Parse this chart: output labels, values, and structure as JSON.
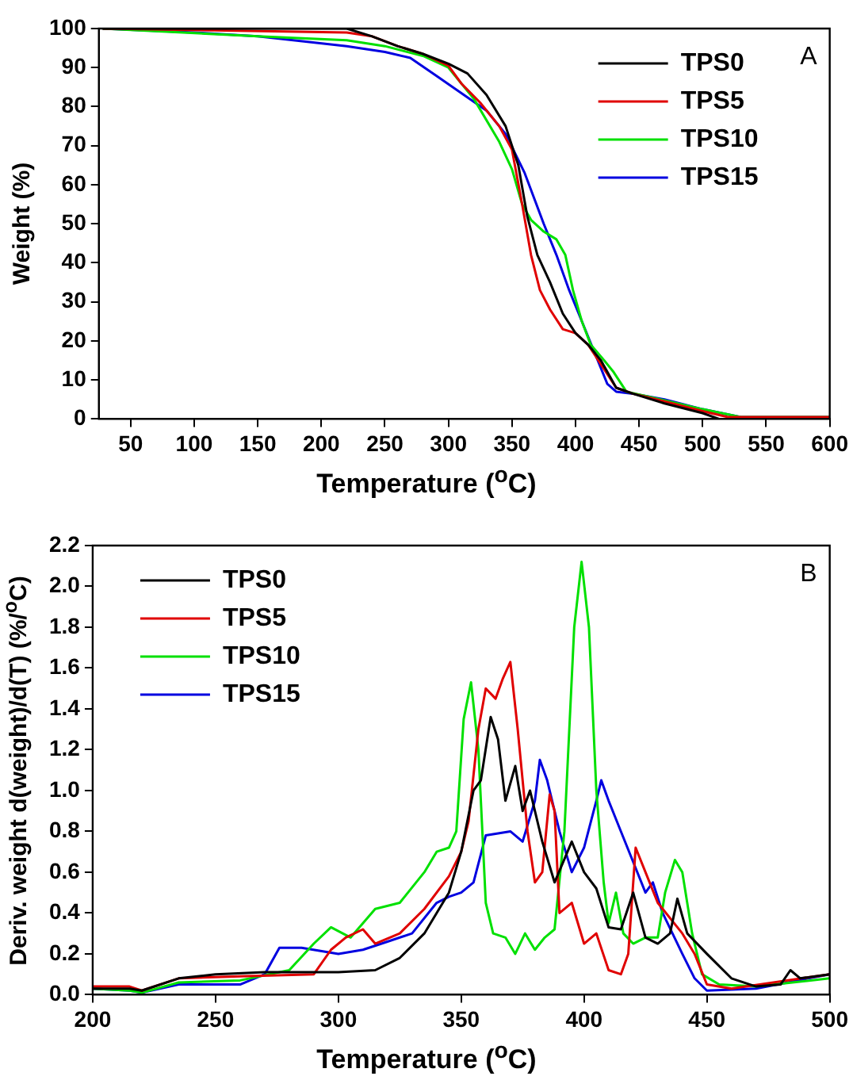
{
  "chart_data": [
    {
      "type": "line",
      "xlabel": "Temperature ($^{o}$C)",
      "ylabel": "Weight (%)",
      "annotations": [
        "A"
      ],
      "legend": "top right",
      "grid": false,
      "line_style": "solid",
      "marker": "none",
      "xlim": [
        25,
        600
      ],
      "xticks": [
        50,
        100,
        150,
        200,
        250,
        300,
        350,
        400,
        450,
        500,
        550,
        600
      ],
      "ylim": [
        0,
        100
      ],
      "yticks": [
        0,
        10,
        20,
        30,
        40,
        50,
        60,
        70,
        80,
        90,
        100
      ],
      "series": [
        {
          "name": "TPS0",
          "color": "#000000",
          "x": [
            28,
            220,
            240,
            260,
            280,
            300,
            315,
            330,
            345,
            355,
            362,
            370,
            380,
            390,
            400,
            410,
            420,
            432,
            445,
            470,
            500,
            513,
            600
          ],
          "values": [
            100,
            100,
            98,
            95.5,
            93.5,
            91,
            88.5,
            83,
            75,
            65,
            52,
            42,
            35,
            27,
            22,
            19,
            15,
            8,
            6.5,
            4,
            1.5,
            0,
            0
          ]
        },
        {
          "name": "TPS5",
          "color": "#e00000",
          "x": [
            28,
            220,
            240,
            260,
            280,
            300,
            310,
            325,
            340,
            350,
            358,
            365,
            372,
            380,
            390,
            400,
            410,
            420,
            432,
            445,
            470,
            500,
            520,
            600
          ],
          "values": [
            100,
            99,
            98,
            95.5,
            93.5,
            90.5,
            86,
            81,
            75,
            69,
            55,
            42,
            33,
            28,
            23,
            22,
            19,
            14,
            8,
            6.5,
            4.5,
            2,
            0.5,
            0.5
          ]
        },
        {
          "name": "TPS10",
          "color": "#00e000",
          "x": [
            28,
            150,
            220,
            250,
            280,
            300,
            320,
            340,
            350,
            358,
            365,
            375,
            385,
            392,
            398,
            405,
            412,
            420,
            430,
            440,
            460,
            480,
            500,
            530,
            600
          ],
          "values": [
            100,
            98,
            97,
            95.5,
            93,
            90,
            82,
            71,
            64,
            55,
            51,
            48,
            46,
            42,
            33,
            25,
            19,
            16,
            12,
            7,
            5.5,
            4,
            2.5,
            0.5,
            0.5
          ]
        },
        {
          "name": "TPS15",
          "color": "#0000e0",
          "x": [
            28,
            100,
            150,
            220,
            250,
            270,
            290,
            310,
            330,
            345,
            360,
            375,
            385,
            395,
            405,
            415,
            425,
            432,
            445,
            470,
            500,
            530,
            600
          ],
          "values": [
            100,
            99,
            98,
            95.5,
            94,
            92.5,
            88,
            83.5,
            79,
            73,
            63,
            50,
            42,
            33,
            25,
            17,
            9,
            7,
            6.5,
            5,
            2.5,
            0.5,
            0.5
          ]
        }
      ]
    },
    {
      "type": "line",
      "xlabel": "Temperature ($^{o}$C)",
      "ylabel": "Deriv. weight d(weight)/d(T) (%/$^{o}$C)",
      "annotations": [
        "B"
      ],
      "legend": "top left",
      "grid": false,
      "line_style": "solid",
      "marker": "none",
      "xlim": [
        200,
        500
      ],
      "xticks": [
        200,
        250,
        300,
        350,
        400,
        450,
        500
      ],
      "ylim": [
        0,
        2.2
      ],
      "yticks": [
        {
          "value": 0,
          "label": "0.0"
        },
        0.2,
        0.4,
        0.6,
        0.8,
        {
          "value": 1,
          "label": "1.0"
        },
        1.2,
        1.4,
        1.6,
        1.8,
        {
          "value": 2,
          "label": "2.0"
        },
        2.2
      ],
      "series": [
        {
          "name": "TPS0",
          "color": "#000000",
          "x": [
            200,
            215,
            220,
            235,
            250,
            270,
            300,
            315,
            325,
            335,
            345,
            350,
            355,
            358,
            362,
            365,
            368,
            372,
            375,
            378,
            383,
            388,
            395,
            400,
            405,
            410,
            415,
            420,
            425,
            430,
            435,
            438,
            442,
            450,
            460,
            470,
            480,
            484,
            488,
            500
          ],
          "values": [
            0.03,
            0.03,
            0.02,
            0.08,
            0.1,
            0.11,
            0.11,
            0.12,
            0.18,
            0.3,
            0.5,
            0.7,
            1.0,
            1.05,
            1.36,
            1.25,
            0.95,
            1.12,
            0.9,
            1.0,
            0.75,
            0.55,
            0.75,
            0.6,
            0.52,
            0.33,
            0.32,
            0.5,
            0.28,
            0.25,
            0.3,
            0.47,
            0.3,
            0.2,
            0.08,
            0.04,
            0.05,
            0.12,
            0.08,
            0.1
          ]
        },
        {
          "name": "TPS5",
          "color": "#e00000",
          "x": [
            200,
            215,
            220,
            235,
            260,
            290,
            297,
            303,
            310,
            315,
            325,
            335,
            345,
            350,
            353,
            357,
            360,
            364,
            367,
            370,
            373,
            377,
            380,
            383,
            386,
            388,
            390,
            395,
            400,
            405,
            410,
            415,
            418,
            421,
            425,
            430,
            440,
            445,
            450,
            460,
            500
          ],
          "values": [
            0.04,
            0.04,
            0.02,
            0.08,
            0.09,
            0.1,
            0.22,
            0.28,
            0.32,
            0.25,
            0.3,
            0.42,
            0.58,
            0.7,
            0.85,
            1.3,
            1.5,
            1.45,
            1.55,
            1.63,
            1.3,
            0.8,
            0.55,
            0.6,
            0.98,
            0.9,
            0.4,
            0.45,
            0.25,
            0.3,
            0.12,
            0.1,
            0.2,
            0.72,
            0.6,
            0.45,
            0.3,
            0.2,
            0.05,
            0.03,
            0.1
          ]
        },
        {
          "name": "TPS10",
          "color": "#00e000",
          "x": [
            200,
            215,
            220,
            235,
            260,
            280,
            290,
            297,
            305,
            315,
            325,
            335,
            340,
            345,
            348,
            351,
            354,
            357,
            360,
            363,
            368,
            372,
            376,
            380,
            384,
            388,
            392,
            396,
            399,
            402,
            405,
            408,
            410,
            413,
            416,
            420,
            425,
            430,
            433,
            437,
            440,
            444,
            448,
            455,
            470,
            500
          ],
          "values": [
            0.03,
            0.02,
            0.01,
            0.06,
            0.07,
            0.12,
            0.25,
            0.33,
            0.28,
            0.42,
            0.45,
            0.6,
            0.7,
            0.72,
            0.8,
            1.35,
            1.53,
            1.2,
            0.45,
            0.3,
            0.28,
            0.2,
            0.3,
            0.22,
            0.28,
            0.32,
            0.8,
            1.8,
            2.12,
            1.8,
            1.0,
            0.55,
            0.35,
            0.5,
            0.3,
            0.25,
            0.28,
            0.28,
            0.5,
            0.66,
            0.6,
            0.3,
            0.1,
            0.05,
            0.04,
            0.08
          ]
        },
        {
          "name": "TPS15",
          "color": "#0000e0",
          "x": [
            200,
            215,
            220,
            235,
            260,
            270,
            276,
            285,
            300,
            310,
            320,
            330,
            340,
            345,
            350,
            355,
            360,
            370,
            375,
            380,
            382,
            385,
            390,
            395,
            400,
            405,
            407,
            410,
            415,
            420,
            425,
            428,
            432,
            440,
            445,
            450,
            470,
            500
          ],
          "values": [
            0.03,
            0.02,
            0.01,
            0.05,
            0.05,
            0.1,
            0.23,
            0.23,
            0.2,
            0.22,
            0.26,
            0.3,
            0.45,
            0.48,
            0.5,
            0.55,
            0.78,
            0.8,
            0.75,
            0.95,
            1.15,
            1.05,
            0.8,
            0.6,
            0.72,
            0.95,
            1.05,
            0.95,
            0.8,
            0.65,
            0.5,
            0.55,
            0.4,
            0.2,
            0.08,
            0.02,
            0.03,
            0.1
          ]
        }
      ]
    }
  ]
}
